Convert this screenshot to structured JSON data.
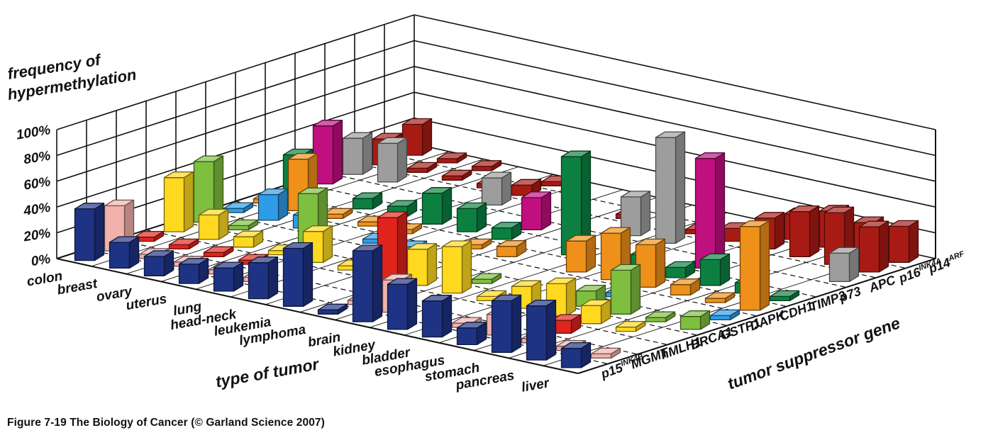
{
  "figure": {
    "caption": "Figure 7-19  The Biology of Cancer (© Garland Science 2007)"
  },
  "chart_data": {
    "type": "bar3d",
    "title_lines": [
      "frequency of",
      "hypermethylation"
    ],
    "x_axis_title": "type of tumor",
    "z_axis_title": "tumor suppressor gene",
    "y_ticks": [
      "0%",
      "20%",
      "40%",
      "60%",
      "80%",
      "100%"
    ],
    "ylim": [
      0,
      100
    ],
    "grid": "on",
    "tumors": [
      "colon",
      "breast",
      "ovary",
      "uterus",
      "lung",
      "head-neck",
      "leukemia",
      "lymphoma",
      "brain",
      "kidney",
      "bladder",
      "esophagus",
      "stomach",
      "pancreas",
      "liver"
    ],
    "genes": [
      {
        "name": "p15",
        "sup": "INK4B",
        "color": "#1E3383",
        "values": [
          40,
          20,
          15,
          15,
          18,
          28,
          45,
          5,
          55,
          35,
          28,
          13,
          40,
          42,
          15
        ]
      },
      {
        "name": "MGMT",
        "sup": "",
        "color": "#F2B1AC",
        "values": [
          35,
          6,
          4,
          4,
          6,
          0,
          0,
          4,
          25,
          0,
          4,
          16,
          6,
          4,
          3
        ]
      },
      {
        "name": "hMLH1",
        "sup": "",
        "color": "#E0241B",
        "values": [
          6,
          5,
          4,
          5,
          0,
          0,
          0,
          60,
          0,
          0,
          0,
          0,
          10,
          0,
          0
        ]
      },
      {
        "name": "BRCA1",
        "sup": "",
        "color": "#FFD920",
        "values": [
          42,
          19,
          8,
          5,
          24,
          4,
          4,
          28,
          36,
          4,
          17,
          25,
          14,
          5,
          0
        ]
      },
      {
        "name": "GSTP1",
        "sup": "",
        "color": "#7FBF3F",
        "values": [
          47,
          4,
          0,
          40,
          0,
          0,
          4,
          0,
          4,
          0,
          0,
          12,
          34,
          4,
          10
        ]
      },
      {
        "name": "DAPK",
        "sup": "",
        "color": "#2E9CE7",
        "values": [
          4,
          20,
          10,
          0,
          6,
          4,
          0,
          0,
          0,
          0,
          0,
          4,
          0,
          0,
          4
        ]
      },
      {
        "name": "CDH1",
        "sup": "",
        "color": "#EE9019",
        "values": [
          5,
          40,
          5,
          5,
          5,
          0,
          5,
          8,
          0,
          24,
          36,
          33,
          8,
          5,
          65
        ]
      },
      {
        "name": "TIMP3",
        "sup": "",
        "color": "#0C8040",
        "values": [
          30,
          0,
          8,
          8,
          24,
          18,
          9,
          0,
          76,
          0,
          12,
          8,
          20,
          8,
          4
        ]
      },
      {
        "name": "p73",
        "sup": "",
        "color": "#C00F7F",
        "values": [
          45,
          0,
          0,
          0,
          0,
          0,
          25,
          0,
          0,
          0,
          0,
          85,
          0,
          0,
          0
        ]
      },
      {
        "name": "APC",
        "sup": "",
        "color": "#9D9D9D",
        "values": [
          28,
          30,
          0,
          0,
          21,
          0,
          0,
          0,
          30,
          82,
          0,
          0,
          0,
          0,
          22
        ]
      },
      {
        "name": "p16",
        "sup": "INK4A",
        "color": "#A81B15",
        "values": [
          20,
          4,
          4,
          4,
          8,
          0,
          0,
          4,
          0,
          4,
          10,
          24,
          35,
          40,
          35
        ]
      },
      {
        "name": "p14",
        "sup": "ARF",
        "color": "#A81B15",
        "values": [
          24,
          4,
          4,
          0,
          4,
          0,
          0,
          0,
          0,
          0,
          0,
          20,
          28,
          25,
          28
        ]
      }
    ]
  }
}
